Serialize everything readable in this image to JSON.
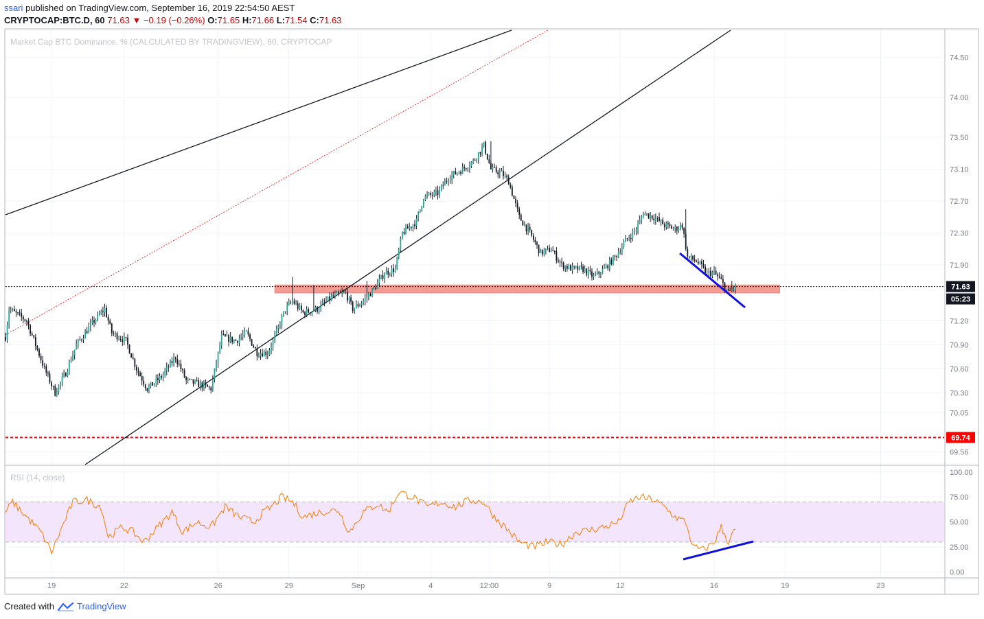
{
  "header": {
    "author": "ssari",
    "published_text": "published on TradingView.com, September 16, 2019 22:54:50 AEST",
    "symbol": "CRYPTOCAP:BTC.D, 60",
    "last": "71.63",
    "change": "−0.19 (−0.26%)",
    "o_label": "O:",
    "o_value": "71.65",
    "h_label": "H:",
    "h_value": "71.66",
    "l_label": "L:",
    "l_value": "71.54",
    "c_label": "C:",
    "c_value": "71.63",
    "down_arrow_icon": "triangle-down-icon"
  },
  "footer": {
    "created_with": "Created with",
    "brand": "TradingView",
    "logo_icon": "tradingview-logo-icon"
  },
  "colors": {
    "candle_up": "#26a69a",
    "candle_body": "#131722",
    "rsi_line": "#f57c00",
    "rsi_band": "#f3e5fc",
    "support_zone": "#f28b82",
    "trend_blue": "#1010e0",
    "dotted_red": "#e53935",
    "red_level": "#ff0000"
  },
  "chart_data": [
    {
      "type": "candlestick",
      "title": "Market Cap BTC Dominance, % (CALCULATED BY TRADINGVIEW), 60, CRYPTOCAP",
      "x_tick_labels": [
        "19",
        "22",
        "26",
        "29",
        "Sep",
        "4",
        "12:00",
        "9",
        "12",
        "16",
        "19",
        "23"
      ],
      "y_tick_labels": [
        "74.50",
        "74.00",
        "73.50",
        "73.10",
        "72.70",
        "72.30",
        "71.90",
        "71.20",
        "70.90",
        "70.60",
        "70.30",
        "70.05",
        "69.56"
      ],
      "ylim": [
        69.4,
        74.85
      ],
      "last_price_label": "71.63",
      "countdown_label": "05:23",
      "red_level_label": "69.74",
      "red_level_value": 69.74,
      "support_zone": [
        71.55,
        71.65
      ],
      "path_keypoints": [
        {
          "i": 0,
          "v": 71.0
        },
        {
          "i": 2,
          "v": 71.35
        },
        {
          "i": 12,
          "v": 71.2
        },
        {
          "i": 22,
          "v": 70.6
        },
        {
          "i": 28,
          "v": 70.3
        },
        {
          "i": 34,
          "v": 70.55
        },
        {
          "i": 40,
          "v": 70.9
        },
        {
          "i": 50,
          "v": 71.2
        },
        {
          "i": 56,
          "v": 71.35
        },
        {
          "i": 60,
          "v": 71.05
        },
        {
          "i": 68,
          "v": 70.95
        },
        {
          "i": 74,
          "v": 70.6
        },
        {
          "i": 80,
          "v": 70.35
        },
        {
          "i": 88,
          "v": 70.5
        },
        {
          "i": 96,
          "v": 70.75
        },
        {
          "i": 102,
          "v": 70.45
        },
        {
          "i": 110,
          "v": 70.4
        },
        {
          "i": 116,
          "v": 70.35
        },
        {
          "i": 122,
          "v": 71.0
        },
        {
          "i": 130,
          "v": 70.95
        },
        {
          "i": 136,
          "v": 71.05
        },
        {
          "i": 142,
          "v": 70.8
        },
        {
          "i": 148,
          "v": 70.8
        },
        {
          "i": 152,
          "v": 71.0
        },
        {
          "i": 158,
          "v": 71.35
        },
        {
          "i": 162,
          "v": 71.45
        },
        {
          "i": 168,
          "v": 71.3
        },
        {
          "i": 176,
          "v": 71.35
        },
        {
          "i": 184,
          "v": 71.5
        },
        {
          "i": 192,
          "v": 71.55
        },
        {
          "i": 196,
          "v": 71.35
        },
        {
          "i": 202,
          "v": 71.45
        },
        {
          "i": 208,
          "v": 71.6
        },
        {
          "i": 214,
          "v": 71.8
        },
        {
          "i": 220,
          "v": 71.85
        },
        {
          "i": 224,
          "v": 72.3
        },
        {
          "i": 232,
          "v": 72.45
        },
        {
          "i": 236,
          "v": 72.75
        },
        {
          "i": 244,
          "v": 72.8
        },
        {
          "i": 250,
          "v": 73.0
        },
        {
          "i": 258,
          "v": 73.1
        },
        {
          "i": 264,
          "v": 73.2
        },
        {
          "i": 270,
          "v": 73.4
        },
        {
          "i": 274,
          "v": 73.1
        },
        {
          "i": 280,
          "v": 73.05
        },
        {
          "i": 284,
          "v": 72.95
        },
        {
          "i": 290,
          "v": 72.5
        },
        {
          "i": 296,
          "v": 72.3
        },
        {
          "i": 302,
          "v": 72.05
        },
        {
          "i": 308,
          "v": 72.1
        },
        {
          "i": 314,
          "v": 71.9
        },
        {
          "i": 320,
          "v": 71.85
        },
        {
          "i": 326,
          "v": 71.85
        },
        {
          "i": 332,
          "v": 71.75
        },
        {
          "i": 338,
          "v": 71.85
        },
        {
          "i": 344,
          "v": 72.0
        },
        {
          "i": 350,
          "v": 72.2
        },
        {
          "i": 356,
          "v": 72.35
        },
        {
          "i": 360,
          "v": 72.55
        },
        {
          "i": 366,
          "v": 72.5
        },
        {
          "i": 372,
          "v": 72.4
        },
        {
          "i": 378,
          "v": 72.35
        },
        {
          "i": 382,
          "v": 72.4
        },
        {
          "i": 385,
          "v": 72.0
        },
        {
          "i": 390,
          "v": 71.95
        },
        {
          "i": 396,
          "v": 71.8
        },
        {
          "i": 400,
          "v": 71.8
        },
        {
          "i": 404,
          "v": 71.7
        },
        {
          "i": 408,
          "v": 71.55
        },
        {
          "i": 412,
          "v": 71.63
        }
      ]
    },
    {
      "type": "line",
      "title": "RSI (14, close)",
      "y_tick_labels": [
        "100.00",
        "75.00",
        "50.00",
        "25.00",
        "0.00"
      ],
      "ylim": [
        -5,
        106
      ],
      "band": [
        30,
        70
      ],
      "path_keypoints": [
        {
          "i": 0,
          "v": 60
        },
        {
          "i": 4,
          "v": 70
        },
        {
          "i": 12,
          "v": 55
        },
        {
          "i": 20,
          "v": 40
        },
        {
          "i": 26,
          "v": 20
        },
        {
          "i": 32,
          "v": 45
        },
        {
          "i": 38,
          "v": 70
        },
        {
          "i": 46,
          "v": 72
        },
        {
          "i": 54,
          "v": 65
        },
        {
          "i": 58,
          "v": 35
        },
        {
          "i": 66,
          "v": 45
        },
        {
          "i": 72,
          "v": 40
        },
        {
          "i": 78,
          "v": 30
        },
        {
          "i": 86,
          "v": 45
        },
        {
          "i": 94,
          "v": 60
        },
        {
          "i": 100,
          "v": 40
        },
        {
          "i": 108,
          "v": 50
        },
        {
          "i": 116,
          "v": 45
        },
        {
          "i": 124,
          "v": 65
        },
        {
          "i": 132,
          "v": 55
        },
        {
          "i": 140,
          "v": 50
        },
        {
          "i": 146,
          "v": 60
        },
        {
          "i": 150,
          "v": 65
        },
        {
          "i": 156,
          "v": 75
        },
        {
          "i": 162,
          "v": 70
        },
        {
          "i": 168,
          "v": 55
        },
        {
          "i": 178,
          "v": 60
        },
        {
          "i": 188,
          "v": 62
        },
        {
          "i": 194,
          "v": 40
        },
        {
          "i": 202,
          "v": 60
        },
        {
          "i": 210,
          "v": 68
        },
        {
          "i": 216,
          "v": 60
        },
        {
          "i": 222,
          "v": 80
        },
        {
          "i": 230,
          "v": 75
        },
        {
          "i": 238,
          "v": 65
        },
        {
          "i": 246,
          "v": 70
        },
        {
          "i": 254,
          "v": 65
        },
        {
          "i": 262,
          "v": 72
        },
        {
          "i": 270,
          "v": 70
        },
        {
          "i": 276,
          "v": 55
        },
        {
          "i": 282,
          "v": 45
        },
        {
          "i": 290,
          "v": 30
        },
        {
          "i": 298,
          "v": 25
        },
        {
          "i": 306,
          "v": 30
        },
        {
          "i": 314,
          "v": 28
        },
        {
          "i": 322,
          "v": 40
        },
        {
          "i": 330,
          "v": 42
        },
        {
          "i": 338,
          "v": 45
        },
        {
          "i": 346,
          "v": 50
        },
        {
          "i": 352,
          "v": 70
        },
        {
          "i": 358,
          "v": 75
        },
        {
          "i": 366,
          "v": 72
        },
        {
          "i": 372,
          "v": 65
        },
        {
          "i": 378,
          "v": 55
        },
        {
          "i": 384,
          "v": 50
        },
        {
          "i": 388,
          "v": 25
        },
        {
          "i": 394,
          "v": 22
        },
        {
          "i": 400,
          "v": 30
        },
        {
          "i": 404,
          "v": 45
        },
        {
          "i": 408,
          "v": 30
        },
        {
          "i": 412,
          "v": 43
        }
      ]
    }
  ]
}
